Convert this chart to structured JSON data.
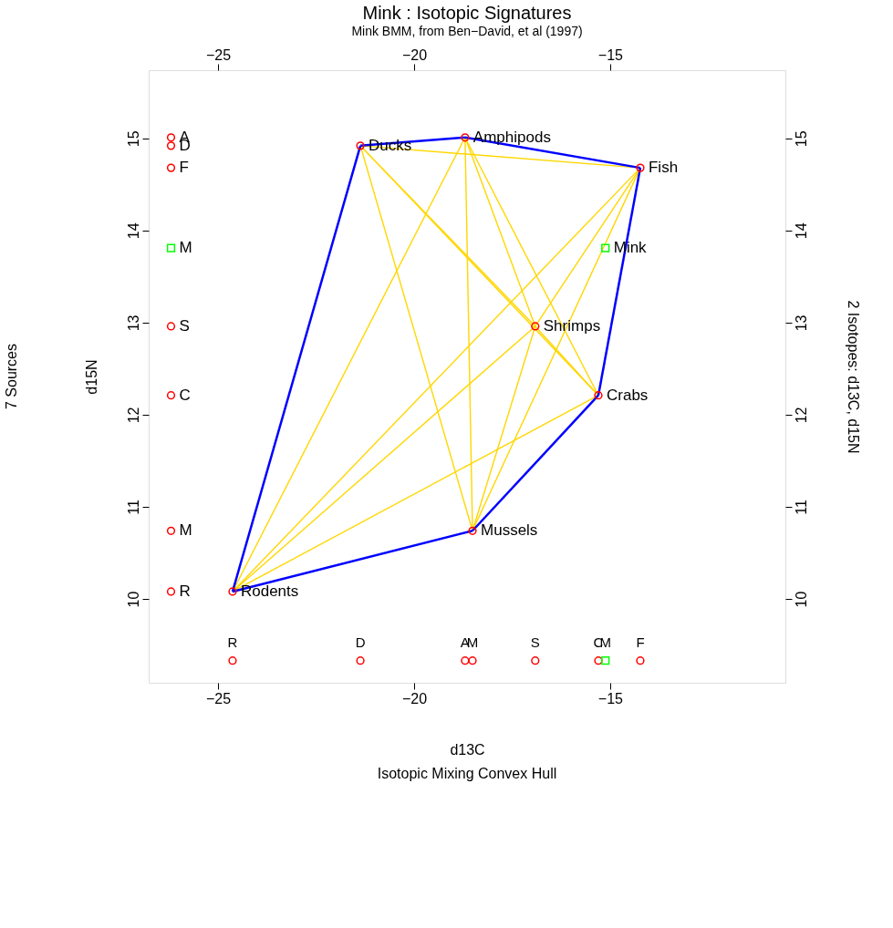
{
  "chart_data": {
    "type": "scatter",
    "title": "Mink :  Isotopic Signatures",
    "subtitle": "Mink BMM, from Ben−David, et al (1997)",
    "xlabel": "d13C",
    "ylabel": "d15N",
    "y2label": "2 Isotopes:  d13C, d15N",
    "xlim": [
      -26.77,
      -10.53
    ],
    "ylim": [
      9.09,
      15.74
    ],
    "x2lim": [
      -26.77,
      -10.53
    ],
    "y2lim": [
      9.09,
      15.74
    ],
    "xticks": [
      -25,
      -20,
      -15
    ],
    "x2ticks": [
      -25,
      -20,
      -15
    ],
    "yticks": [
      10,
      11,
      12,
      13,
      14,
      15
    ],
    "y2ticks": [
      10,
      11,
      12,
      13,
      14,
      15
    ],
    "grid": false,
    "series": [
      {
        "type": "line",
        "color": "#ffd700",
        "marker": "none",
        "x": [
          -21.37,
          -14.23
        ],
        "values": [
          14.92,
          14.68
        ]
      },
      {
        "type": "line",
        "color": "#ffd700",
        "marker": "none",
        "x": [
          -21.37,
          -16.91
        ],
        "values": [
          14.92,
          12.96
        ]
      },
      {
        "type": "line",
        "color": "#ffd700",
        "marker": "none",
        "x": [
          -21.37,
          -15.3
        ],
        "values": [
          14.92,
          12.21
        ]
      },
      {
        "type": "line",
        "color": "#ffd700",
        "marker": "none",
        "x": [
          -21.37,
          -18.51
        ],
        "values": [
          14.92,
          10.74
        ]
      },
      {
        "type": "line",
        "color": "#ffd700",
        "marker": "none",
        "x": [
          -18.7,
          -16.91
        ],
        "values": [
          15.01,
          12.96
        ]
      },
      {
        "type": "line",
        "color": "#ffd700",
        "marker": "none",
        "x": [
          -18.7,
          -15.3
        ],
        "values": [
          15.01,
          12.21
        ]
      },
      {
        "type": "line",
        "color": "#ffd700",
        "marker": "none",
        "x": [
          -18.7,
          -18.51
        ],
        "values": [
          15.01,
          10.74
        ]
      },
      {
        "type": "line",
        "color": "#ffd700",
        "marker": "none",
        "x": [
          -18.7,
          -24.63
        ],
        "values": [
          15.01,
          10.08
        ]
      },
      {
        "type": "line",
        "color": "#ffd700",
        "marker": "none",
        "x": [
          -14.23,
          -16.91
        ],
        "values": [
          14.68,
          12.96
        ]
      },
      {
        "type": "line",
        "color": "#ffd700",
        "marker": "none",
        "x": [
          -14.23,
          -18.51
        ],
        "values": [
          14.68,
          10.74
        ]
      },
      {
        "type": "line",
        "color": "#ffd700",
        "marker": "none",
        "x": [
          -14.23,
          -24.63
        ],
        "values": [
          14.68,
          10.08
        ]
      },
      {
        "type": "line",
        "color": "#ffd700",
        "marker": "none",
        "x": [
          -16.91,
          -15.3
        ],
        "values": [
          12.96,
          12.21
        ]
      },
      {
        "type": "line",
        "color": "#ffd700",
        "marker": "none",
        "x": [
          -16.91,
          -18.51
        ],
        "values": [
          12.96,
          10.74
        ]
      },
      {
        "type": "line",
        "color": "#ffd700",
        "marker": "none",
        "x": [
          -16.91,
          -24.63
        ],
        "values": [
          12.96,
          10.08
        ]
      },
      {
        "type": "line",
        "color": "#ffd700",
        "marker": "none",
        "x": [
          -15.3,
          -24.63
        ],
        "values": [
          12.21,
          10.08
        ]
      },
      {
        "type": "line",
        "color": "#0000ff",
        "marker": "none",
        "x": [
          -24.63,
          -21.37
        ],
        "values": [
          10.08,
          14.92
        ]
      },
      {
        "type": "line",
        "color": "#0000ff",
        "marker": "none",
        "x": [
          -21.37,
          -18.7
        ],
        "values": [
          14.92,
          15.01
        ]
      },
      {
        "type": "line",
        "color": "#0000ff",
        "marker": "none",
        "x": [
          -18.7,
          -14.23
        ],
        "values": [
          15.01,
          14.68
        ]
      },
      {
        "type": "line",
        "color": "#0000ff",
        "marker": "none",
        "x": [
          -14.23,
          -15.3
        ],
        "values": [
          14.68,
          12.21
        ]
      },
      {
        "type": "line",
        "color": "#0000ff",
        "marker": "none",
        "x": [
          -15.3,
          -18.51
        ],
        "values": [
          12.21,
          10.74
        ]
      },
      {
        "type": "line",
        "color": "#0000ff",
        "marker": "none",
        "x": [
          -18.51,
          -24.63
        ],
        "values": [
          10.74,
          10.08
        ]
      },
      {
        "color": "#ff0000",
        "marker": "circle",
        "x": [
          -21.37,
          -18.7,
          -14.23,
          -16.91,
          -15.3,
          -18.51,
          -24.63
        ],
        "values": [
          14.92,
          15.01,
          14.68,
          12.96,
          12.21,
          10.74,
          10.08
        ]
      },
      {
        "color": "#00ff00",
        "marker": "square",
        "x": [
          -15.12
        ],
        "values": [
          13.81
        ]
      },
      {
        "color": "#ff0000",
        "marker": "circle",
        "x": [
          -26.2,
          -26.2,
          -26.2,
          -26.2,
          -26.2,
          -26.2,
          -26.2
        ],
        "values": [
          14.92,
          15.01,
          14.68,
          12.96,
          12.21,
          10.74,
          10.08
        ]
      },
      {
        "color": "#00ff00",
        "marker": "square",
        "x": [
          -26.2
        ],
        "values": [
          13.81
        ]
      },
      {
        "color": "#ff0000",
        "marker": "circle",
        "x": [
          -21.37,
          -18.7,
          -14.23,
          -16.91,
          -15.3,
          -18.51,
          -24.63
        ],
        "values": [
          9.33,
          9.33,
          9.33,
          9.33,
          9.33,
          9.33,
          9.33
        ]
      },
      {
        "color": "#00ff00",
        "marker": "square",
        "x": [
          -15.12
        ],
        "values": [
          9.33
        ]
      }
    ],
    "annotations": [
      "7  Sources",
      "Isotopic Mixing Convex Hull",
      {
        "text": "Ducks",
        "x": -21.37,
        "y": 14.92
      },
      {
        "text": "Amphipods",
        "x": -18.7,
        "y": 15.01
      },
      {
        "text": "Fish",
        "x": -14.23,
        "y": 14.68
      },
      {
        "text": "Mink",
        "x": -15.12,
        "y": 13.81
      },
      {
        "text": "Shrimps",
        "x": -16.91,
        "y": 12.96
      },
      {
        "text": "Crabs",
        "x": -15.3,
        "y": 12.21
      },
      {
        "text": "Mussels",
        "x": -18.51,
        "y": 10.74
      },
      {
        "text": "Rodents",
        "x": -24.63,
        "y": 10.08
      },
      {
        "text": "A",
        "x": -26.2,
        "y": 15.01
      },
      {
        "text": "D",
        "x": -26.2,
        "y": 14.92
      },
      {
        "text": "F",
        "x": -26.2,
        "y": 14.68
      },
      {
        "text": "M",
        "x": -26.2,
        "y": 13.81
      },
      {
        "text": "S",
        "x": -26.2,
        "y": 12.96
      },
      {
        "text": "C",
        "x": -26.2,
        "y": 12.21
      },
      {
        "text": "M",
        "x": -26.2,
        "y": 10.74
      },
      {
        "text": "R",
        "x": -26.2,
        "y": 10.08
      },
      {
        "text": "R",
        "x": -24.63,
        "y": 9.33
      },
      {
        "text": "D",
        "x": -21.37,
        "y": 9.33
      },
      {
        "text": "A",
        "x": -18.7,
        "y": 9.33
      },
      {
        "text": "M",
        "x": -18.51,
        "y": 9.33
      },
      {
        "text": "S",
        "x": -16.91,
        "y": 9.33
      },
      {
        "text": "C",
        "x": -15.3,
        "y": 9.33
      },
      {
        "text": "M",
        "x": -15.12,
        "y": 9.33
      },
      {
        "text": "F",
        "x": -14.23,
        "y": 9.33
      }
    ]
  }
}
